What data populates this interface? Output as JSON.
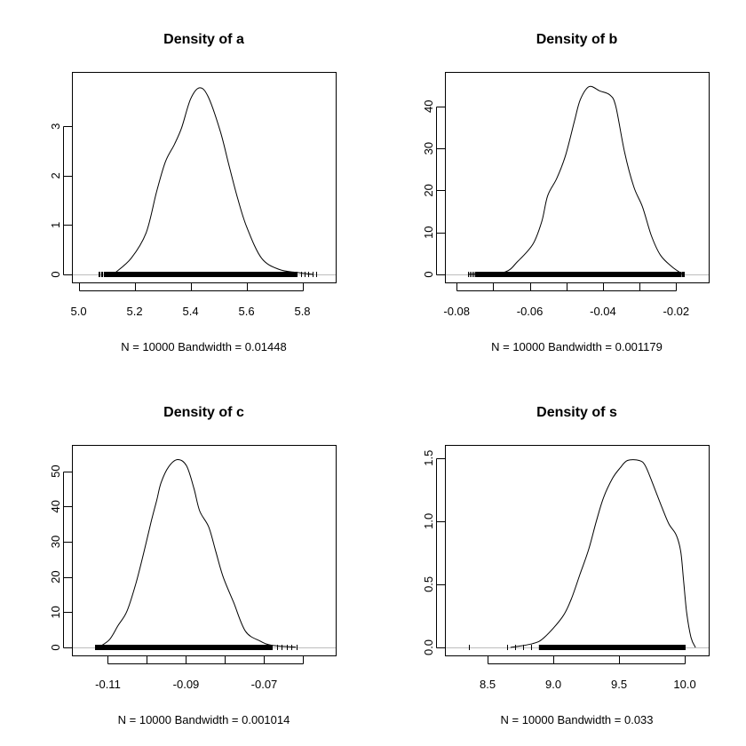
{
  "figure": {
    "layout": "2x2 grid",
    "background": "#ffffff",
    "line_color": "#000000",
    "zero_line_color": "#bebebe"
  },
  "chart_data": [
    {
      "type": "line",
      "title": "Density of a",
      "xlabel": "N = 10000   Bandwidth = 0.01448",
      "ylabel": "",
      "n": 10000,
      "bandwidth": 0.01448,
      "xlim": [
        4.976,
        5.919
      ],
      "ylim": [
        0,
        3.94
      ],
      "xticks": [
        5.0,
        5.2,
        5.4,
        5.6,
        5.8
      ],
      "xtick_labels": [
        "5.0",
        "5.2",
        "5.4",
        "5.6",
        "5.8"
      ],
      "yticks": [
        0,
        1,
        2,
        3
      ],
      "ytick_labels": [
        "0",
        "1",
        "2",
        "3"
      ],
      "grid": false,
      "legend": null,
      "rug": {
        "start": 5.07,
        "dense_start": 5.09,
        "dense_end": 5.78,
        "end": 5.85
      },
      "x": [
        5.13,
        5.188,
        5.241,
        5.278,
        5.31,
        5.342,
        5.368,
        5.4,
        5.432,
        5.463,
        5.506,
        5.537,
        5.569,
        5.601,
        5.654,
        5.717,
        5.781,
        5.84
      ],
      "y": [
        0.03,
        0.33,
        0.84,
        1.66,
        2.28,
        2.63,
        2.97,
        3.55,
        3.78,
        3.6,
        2.91,
        2.22,
        1.53,
        0.96,
        0.33,
        0.1,
        0.04,
        0.0
      ]
    },
    {
      "type": "line",
      "title": "Density of b",
      "xlabel": "N = 10000   Bandwidth = 0.001179",
      "ylabel": "",
      "n": 10000,
      "bandwidth": 0.001179,
      "xlim": [
        -0.0832,
        -0.0111
      ],
      "ylim": [
        0,
        46.3
      ],
      "xticks": [
        -0.08,
        -0.07,
        -0.06,
        -0.05,
        -0.04,
        -0.03,
        -0.02
      ],
      "xtick_labels": [
        "-0.08",
        "",
        "-0.06",
        "",
        "-0.04",
        "",
        "-0.02"
      ],
      "yticks": [
        0,
        10,
        20,
        30,
        40
      ],
      "ytick_labels": [
        "0",
        "10",
        "20",
        "30",
        "40"
      ],
      "grid": false,
      "legend": null,
      "rug": {
        "start": -0.0769,
        "dense_start": -0.075,
        "dense_end": -0.0185,
        "end": -0.018
      },
      "x": [
        -0.0769,
        -0.0672,
        -0.0632,
        -0.0591,
        -0.0567,
        -0.0551,
        -0.0526,
        -0.0502,
        -0.0478,
        -0.0462,
        -0.0438,
        -0.0409,
        -0.0381,
        -0.0365,
        -0.0341,
        -0.0316,
        -0.0292,
        -0.0268,
        -0.0243,
        -0.0211,
        -0.0183
      ],
      "y": [
        0.06,
        0.47,
        3.2,
        7.3,
        12.7,
        18.8,
        22.9,
        28.4,
        36.5,
        41.6,
        44.7,
        43.7,
        42.7,
        40.0,
        29.1,
        20.9,
        16.1,
        9.3,
        4.6,
        1.8,
        0.1
      ]
    },
    {
      "type": "line",
      "title": "Density of c",
      "xlabel": "N = 10000   Bandwidth = 0.001014",
      "ylabel": "",
      "n": 10000,
      "bandwidth": 0.001014,
      "xlim": [
        -0.1192,
        -0.0517
      ],
      "ylim": [
        0,
        55.2
      ],
      "xticks": [
        -0.11,
        -0.1,
        -0.09,
        -0.08,
        -0.07,
        -0.06
      ],
      "xtick_labels": [
        "-0.11",
        "",
        "-0.09",
        "",
        "-0.07",
        ""
      ],
      "yticks": [
        0,
        10,
        20,
        30,
        40,
        50
      ],
      "ytick_labels": [
        "0",
        "10",
        "20",
        "30",
        "40",
        "50"
      ],
      "grid": false,
      "legend": null,
      "rug": {
        "start": -0.1134,
        "dense_start": -0.1125,
        "dense_end": -0.068,
        "end": -0.0618
      },
      "x": [
        -0.1123,
        -0.1096,
        -0.1074,
        -0.1051,
        -0.1028,
        -0.1009,
        -0.099,
        -0.0975,
        -0.0964,
        -0.0945,
        -0.0922,
        -0.0899,
        -0.088,
        -0.0865,
        -0.0842,
        -0.0824,
        -0.0805,
        -0.0778,
        -0.0748,
        -0.071,
        -0.068,
        -0.0619
      ],
      "y": [
        0.1,
        2.2,
        6.2,
        10.3,
        18.3,
        26.5,
        35.4,
        41.8,
        46.7,
        51.2,
        53.3,
        51.6,
        45.2,
        38.7,
        34.2,
        27.3,
        20.0,
        12.7,
        4.6,
        1.8,
        0.6,
        0.1
      ]
    },
    {
      "type": "line",
      "title": "Density of s",
      "xlabel": "N = 10000   Bandwidth = 0.033",
      "ylabel": "",
      "n": 10000,
      "bandwidth": 0.033,
      "xlim": [
        8.175,
        10.182
      ],
      "ylim": [
        0,
        1.54
      ],
      "xticks": [
        8.5,
        9.0,
        9.5,
        10.0
      ],
      "xtick_labels": [
        "8.5",
        "9.0",
        "9.5",
        "10.0"
      ],
      "yticks": [
        0.0,
        0.5,
        1.0,
        1.5
      ],
      "ytick_labels": [
        "0.0",
        "0.5",
        "1.0",
        "1.5"
      ],
      "grid": false,
      "legend": null,
      "rug": {
        "isolated": 8.36,
        "start": 8.65,
        "dense_start": 8.89,
        "dense_end": 10.0,
        "end": 10.0
      },
      "x": [
        8.674,
        8.843,
        8.932,
        9.068,
        9.135,
        9.203,
        9.27,
        9.327,
        9.383,
        9.451,
        9.507,
        9.564,
        9.653,
        9.699,
        9.755,
        9.822,
        9.878,
        9.935,
        9.969,
        9.991,
        10.014,
        10.047,
        10.081
      ],
      "y": [
        0.0,
        0.03,
        0.08,
        0.24,
        0.38,
        0.58,
        0.78,
        1.0,
        1.19,
        1.34,
        1.42,
        1.48,
        1.48,
        1.44,
        1.3,
        1.12,
        0.98,
        0.89,
        0.76,
        0.53,
        0.28,
        0.08,
        0.0
      ]
    }
  ]
}
